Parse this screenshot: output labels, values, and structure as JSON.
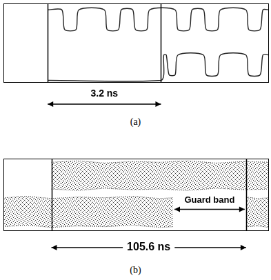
{
  "chart_data": [
    {
      "type": "line",
      "caption": "(a)",
      "xlim": [
        0,
        7.5
      ],
      "ylim": [
        0,
        10
      ],
      "tick_labels": false,
      "grid": false,
      "cursors": [
        1.25,
        4.45
      ],
      "annotations": [
        {
          "text": "3.2 ns",
          "from": 1.25,
          "to": 4.45
        }
      ],
      "series": [
        {
          "color": "#222222",
          "x": [
            1.25,
            1.65,
            1.73,
            2.05,
            2.13,
            2.85,
            2.93,
            3.25,
            3.33,
            3.65,
            3.73,
            4.05,
            4.13,
            4.85,
            4.93,
            5.25,
            5.33,
            5.65,
            5.73,
            6.05,
            6.13,
            6.85,
            6.93,
            7.25,
            7.33,
            7.5
          ],
          "values": [
            9.2,
            9.2,
            6.7,
            6.7,
            9.2,
            9.2,
            6.7,
            6.7,
            9.2,
            9.2,
            6.7,
            6.7,
            9.2,
            9.2,
            6.7,
            6.7,
            9.2,
            9.2,
            6.7,
            6.7,
            9.2,
            9.2,
            6.7,
            6.7,
            9.2,
            9.2
          ]
        },
        {
          "color": "#222222",
          "x": [
            1.25,
            4.45,
            4.53,
            4.6,
            4.68,
            4.85,
            4.93,
            5.65,
            5.73,
            6.05,
            6.13,
            6.85,
            6.93,
            7.25,
            7.33,
            7.5
          ],
          "values": [
            0.3,
            0.3,
            3.5,
            3.5,
            1.0,
            1.0,
            3.5,
            3.5,
            1.0,
            1.0,
            3.5,
            3.5,
            1.0,
            1.0,
            3.5,
            3.5
          ]
        }
      ]
    },
    {
      "type": "line",
      "caption": "(b)",
      "xlim": [
        0,
        144
      ],
      "ylim": [
        0,
        10
      ],
      "tick_labels": false,
      "grid": false,
      "cursors": [
        26,
        131.6
      ],
      "annotations": [
        {
          "text": "105.6 ns",
          "from": 26,
          "to": 131.6
        },
        {
          "text": "Guard band",
          "from": 92,
          "to": 131.6
        }
      ],
      "series": [
        {
          "color": "#333333",
          "x": [
            26,
            40,
            55,
            70,
            85,
            100,
            115,
            131.6,
            144
          ],
          "lower": [
            5.8,
            5.6,
            5.9,
            5.7,
            5.8,
            5.6,
            5.9,
            5.7,
            5.8
          ],
          "upper": [
            9.5,
            9.7,
            9.4,
            9.6,
            9.5,
            9.7,
            9.4,
            9.6,
            9.5
          ]
        },
        {
          "color": "#333333",
          "x": [
            0,
            13,
            26,
            40,
            55,
            70,
            85,
            92
          ],
          "lower": [
            0.6,
            0.8,
            0.5,
            0.7,
            0.6,
            0.8,
            0.5,
            0.6
          ],
          "upper": [
            4.6,
            4.8,
            4.5,
            4.7,
            4.6,
            4.8,
            4.5,
            4.6
          ]
        },
        {
          "color": "#333333",
          "x": [
            131.6,
            138,
            144
          ],
          "lower": [
            0.6,
            0.7,
            0.5
          ],
          "upper": [
            4.7,
            4.5,
            4.6
          ]
        }
      ]
    }
  ]
}
